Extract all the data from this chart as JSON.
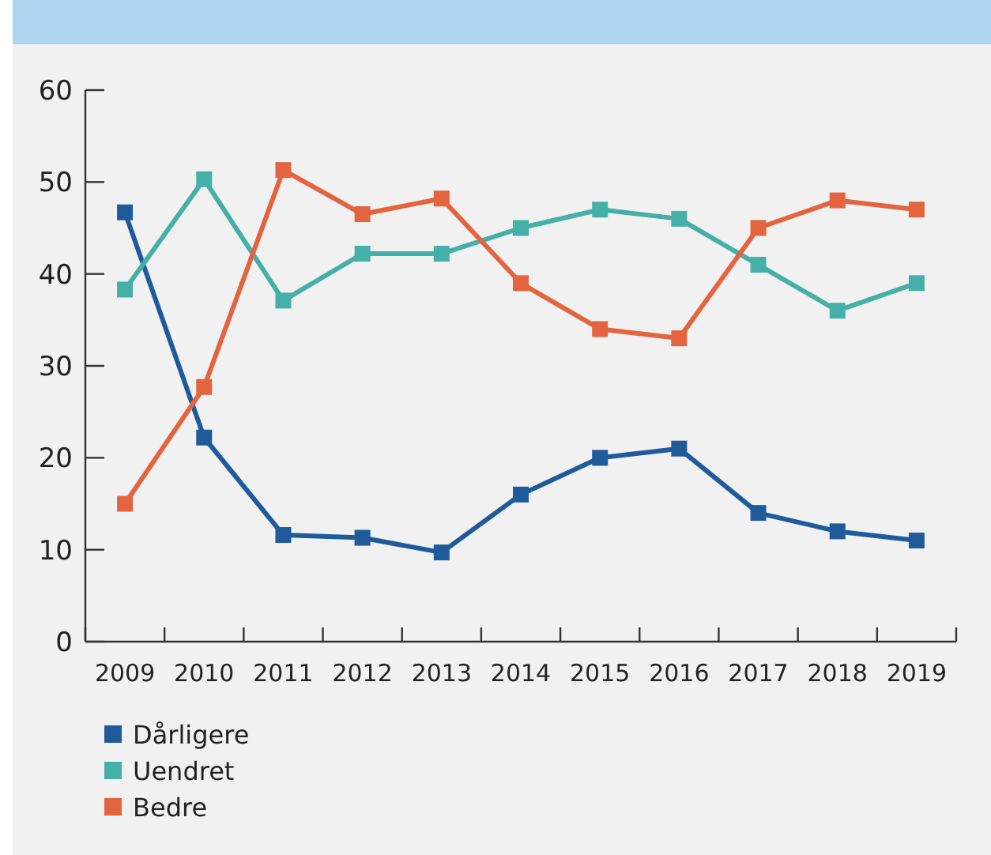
{
  "chart_data": {
    "type": "line",
    "categories": [
      "2009",
      "2010",
      "2011",
      "2012",
      "2013",
      "2014",
      "2015",
      "2016",
      "2017",
      "2018",
      "2019"
    ],
    "series": [
      {
        "name": "Dårligere",
        "color": "#1f5a9a",
        "values": [
          46.7,
          22.2,
          11.6,
          11.3,
          9.7,
          16,
          20,
          21,
          14,
          12,
          11
        ]
      },
      {
        "name": "Uendret",
        "color": "#45b0a8",
        "values": [
          38.3,
          50.3,
          37.1,
          42.2,
          42.2,
          45,
          47,
          46,
          41,
          36,
          39
        ]
      },
      {
        "name": "Bedre",
        "color": "#e3643f",
        "values": [
          15,
          27.7,
          51.3,
          46.5,
          48.2,
          39,
          34,
          33,
          45,
          48,
          47
        ]
      }
    ],
    "ylim": [
      0,
      60
    ],
    "yticks": [
      0,
      10,
      20,
      30,
      40,
      50,
      60
    ],
    "grid": false,
    "legend": "bottom left",
    "marker": "square",
    "line_style": "solid"
  }
}
